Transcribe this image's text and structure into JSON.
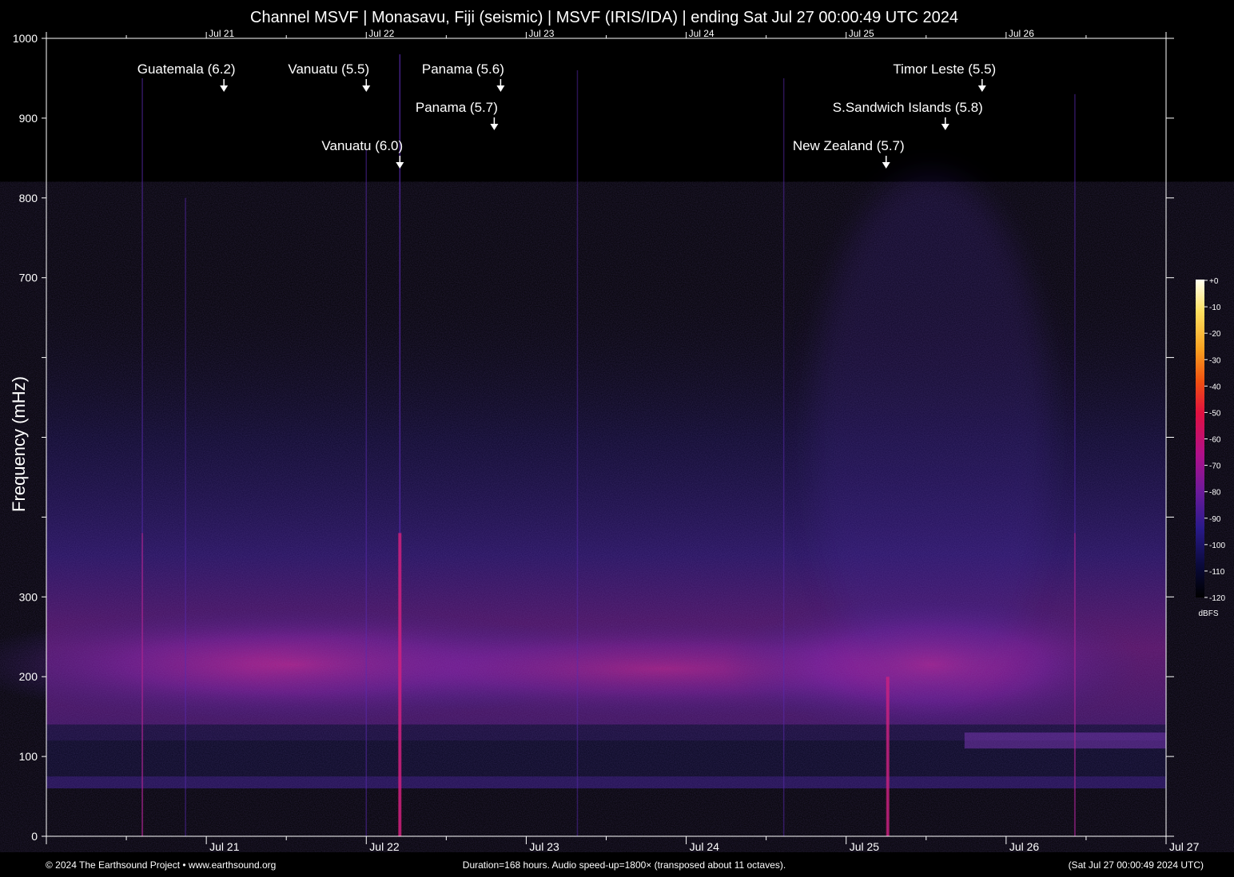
{
  "title": "Channel MSVF | Monasavu, Fiji (seismic) | MSVF (IRIS/IDA) | ending Sat Jul 27 00:00:49 UTC 2024",
  "footer": {
    "copyright": "© 2024 The Earthsound Project • www.earthsound.org",
    "duration": "Duration=168 hours. Audio speed-up=1800× (transposed about 11 octaves).",
    "ending": "(Sat Jul 27 00:00:49 2024 UTC)"
  },
  "chart_data": {
    "type": "heatmap",
    "title": "Channel MSVF | Monasavu, Fiji (seismic) | MSVF (IRIS/IDA) | ending Sat Jul 27 00:00:49 UTC 2024",
    "ylabel": "Frequency (mHz)",
    "xlabel": "",
    "ylim": [
      0,
      1000
    ],
    "xlim": [
      "2024-07-20 00:00:49",
      "2024-07-27 00:00:49"
    ],
    "y_ticks": [
      0,
      100,
      200,
      300,
      400,
      500,
      600,
      700,
      800,
      900,
      1000
    ],
    "y_tick_labels": [
      "0",
      "100",
      "200",
      "300",
      "",
      "",
      "",
      "700",
      "800",
      "900",
      "1000"
    ],
    "x_date_labels": [
      {
        "label": "Jul 21",
        "date": "2024-07-21"
      },
      {
        "label": "Jul 22",
        "date": "2024-07-22"
      },
      {
        "label": "Jul 23",
        "date": "2024-07-23"
      },
      {
        "label": "Jul 24",
        "date": "2024-07-24"
      },
      {
        "label": "Jul 25",
        "date": "2024-07-25"
      },
      {
        "label": "Jul 26",
        "date": "2024-07-26"
      }
    ],
    "x_end_label": "Jul 27",
    "minor_tick_hours": 12,
    "colorbar": {
      "unit": "dBFS",
      "ticks": [
        "+0",
        "-10",
        "-20",
        "-30",
        "-40",
        "-50",
        "-60",
        "-70",
        "-80",
        "-90",
        "-100",
        "-110",
        "-120"
      ],
      "colors": [
        "#000000",
        "#0a0a3a",
        "#2a1a8a",
        "#6a1a9a",
        "#b0108a",
        "#e01040",
        "#f05010",
        "#f8a020",
        "#ffe060",
        "#fffff0"
      ]
    },
    "annotations": [
      {
        "label": "Guatemala (6.2)",
        "day": 1.11
      },
      {
        "label": "Vanuatu (5.5)",
        "day": 2.0
      },
      {
        "label": "Vanuatu (6.0)",
        "day": 2.21
      },
      {
        "label": "Panama (5.6)",
        "day": 2.84
      },
      {
        "label": "Panama (5.7)",
        "day": 2.8
      },
      {
        "label": "New Zealand (5.7)",
        "day": 5.25
      },
      {
        "label": "S.Sandwich Islands (5.8)",
        "day": 5.62
      },
      {
        "label": "Timor Leste (5.5)",
        "day": 5.85
      }
    ],
    "events": [
      {
        "day": 0.6,
        "top_mhz": 950,
        "strength": 0.5
      },
      {
        "day": 0.87,
        "top_mhz": 800,
        "strength": 0.35
      },
      {
        "day": 2.0,
        "top_mhz": 860,
        "strength": 0.4
      },
      {
        "day": 2.21,
        "top_mhz": 980,
        "strength": 1.0
      },
      {
        "day": 3.32,
        "top_mhz": 960,
        "strength": 0.3
      },
      {
        "day": 5.26,
        "top_mhz": 200,
        "strength": 0.9
      },
      {
        "day": 4.61,
        "top_mhz": 950,
        "strength": 0.35
      },
      {
        "day": 6.43,
        "top_mhz": 930,
        "strength": 0.45
      }
    ]
  }
}
